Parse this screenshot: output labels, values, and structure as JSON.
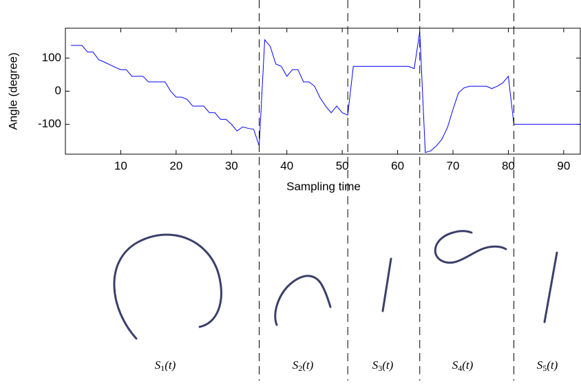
{
  "chart_data": {
    "type": "line",
    "y_label": "Angle (degree)",
    "x_label": "Sampling time",
    "xlim": [
      0,
      93
    ],
    "ylim": [
      -190,
      190
    ],
    "xticks": [
      10,
      20,
      30,
      40,
      50,
      60,
      70,
      80,
      90
    ],
    "yticks": [
      -100,
      0,
      100
    ],
    "x": [
      1,
      2,
      3,
      4,
      5,
      6,
      7,
      8,
      9,
      10,
      11,
      12,
      13,
      14,
      15,
      16,
      17,
      18,
      19,
      20,
      21,
      22,
      23,
      24,
      25,
      26,
      27,
      28,
      29,
      30,
      31,
      32,
      33,
      34,
      35,
      36,
      37,
      38,
      39,
      40,
      41,
      42,
      43,
      44,
      45,
      46,
      47,
      48,
      49,
      50,
      51,
      52,
      53,
      54,
      55,
      56,
      57,
      58,
      59,
      60,
      61,
      62,
      63,
      64,
      65,
      66,
      67,
      68,
      69,
      70,
      71,
      72,
      73,
      74,
      75,
      76,
      77,
      78,
      79,
      80,
      81,
      82,
      83,
      84,
      85,
      86,
      87,
      88,
      89,
      90,
      91,
      92,
      93
    ],
    "series": [
      {
        "color": "#0000ff",
        "values": [
          138,
          138,
          138,
          118,
          118,
          95,
          88,
          80,
          72,
          65,
          65,
          45,
          45,
          45,
          28,
          28,
          28,
          28,
          0,
          -18,
          -18,
          -25,
          -45,
          -45,
          -45,
          -65,
          -65,
          -85,
          -85,
          -100,
          -120,
          -108,
          -112,
          -115,
          -165,
          155,
          135,
          82,
          75,
          45,
          65,
          65,
          28,
          28,
          15,
          -20,
          -45,
          -65,
          -45,
          -65,
          -72,
          75,
          75,
          75,
          75,
          75,
          75,
          75,
          75,
          75,
          75,
          75,
          68,
          180,
          -185,
          -180,
          -165,
          -145,
          -110,
          -55,
          -5,
          10,
          15,
          15,
          15,
          15,
          8,
          15,
          25,
          45,
          -100,
          -100,
          -100,
          -100,
          -100,
          -100,
          -100,
          -100,
          -100,
          -100,
          -100,
          -100,
          -100
        ]
      }
    ],
    "boundaries": [
      35,
      51,
      64,
      81
    ],
    "segments": [
      {
        "name": "S",
        "sub": "1",
        "arg": "(t)"
      },
      {
        "name": "S",
        "sub": "2",
        "arg": "(t)"
      },
      {
        "name": "S",
        "sub": "3",
        "arg": "(t)"
      },
      {
        "name": "S",
        "sub": "4",
        "arg": "(t)"
      },
      {
        "name": "S",
        "sub": "5",
        "arg": "(t)"
      }
    ]
  }
}
